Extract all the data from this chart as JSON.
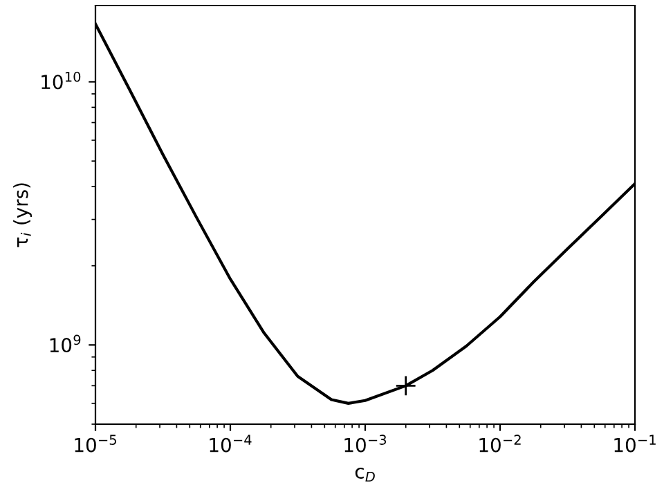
{
  "chart_data": {
    "type": "line",
    "xlabel": "c$_{D}$",
    "ylabel": "τ$_{i}$ (yrs)",
    "log": "xy",
    "xlim": [
      1e-05,
      0.1
    ],
    "ylim": [
      500000000.0,
      19500000000.0
    ],
    "xticks": [
      {
        "value": 1e-05,
        "label": "10$^{−5}$"
      },
      {
        "value": 0.0001,
        "label": "10$^{−4}$"
      },
      {
        "value": 0.001,
        "label": "10$^{−3}$"
      },
      {
        "value": 0.01,
        "label": "10$^{−2}$"
      },
      {
        "value": 0.1,
        "label": "10$^{−1}$"
      }
    ],
    "yticks": [
      {
        "value": 1000000000.0,
        "label": "10$^{9}$"
      },
      {
        "value": 10000000000.0,
        "label": "10$^{10}$"
      }
    ],
    "grid": false,
    "legend": false,
    "series": [
      {
        "color": "#000000",
        "marker": "none",
        "line_style": "solid",
        "x": [
          1e-05,
          1.78e-05,
          3.16e-05,
          5.62e-05,
          0.0001,
          0.000178,
          0.000316,
          0.000562,
          0.00075,
          0.001,
          0.002,
          0.00316,
          0.00562,
          0.01,
          0.0178,
          0.0316,
          0.0562,
          0.1
        ],
        "values": [
          16600000000.0,
          9400000000.0,
          5300000000.0,
          3050000000.0,
          1780000000.0,
          1110000000.0,
          760000000.0,
          620000000.0,
          600000000.0,
          615000000.0,
          700000000.0,
          800000000.0,
          990000000.0,
          1280000000.0,
          1740000000.0,
          2320000000.0,
          3080000000.0,
          4100000000.0
        ]
      },
      {
        "type": "scatter",
        "color": "#000000",
        "marker": "cross",
        "x": [
          0.002
        ],
        "values": [
          700000000.0
        ]
      }
    ]
  }
}
